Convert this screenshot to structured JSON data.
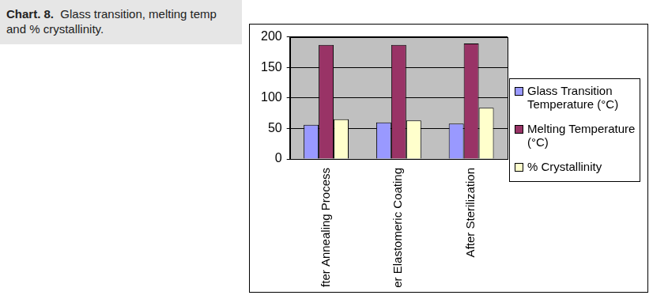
{
  "chart_data": {
    "type": "bar",
    "title": "Chart. 8.  Glass transition, melting temp and % crystallinity.",
    "categories": [
      "After Annealing Process",
      "After Elastomeric Coating",
      "After Sterilization"
    ],
    "series": [
      {
        "name": "Glass Transition Temperature (°C)",
        "color": "#9999ff",
        "values": [
          56,
          60,
          58
        ]
      },
      {
        "name": "Melting Temperature (°C)",
        "color": "#993366",
        "values": [
          187,
          187,
          189
        ]
      },
      {
        "name": "% Crystallinity",
        "color": "#ffffcc",
        "values": [
          65,
          63,
          84
        ]
      }
    ],
    "ylim": [
      0,
      200
    ],
    "yticks": [
      0,
      50,
      100,
      150,
      200
    ],
    "grid": true,
    "legend": "right"
  }
}
